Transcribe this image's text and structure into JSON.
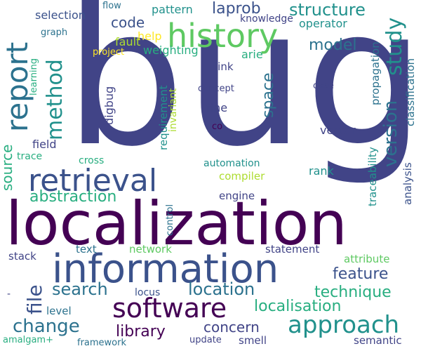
{
  "palette": {
    "deep_purple": "#440154",
    "indigo": "#3b528b",
    "slate_blue": "#414487",
    "teal_blue": "#2c728e",
    "teal": "#21918c",
    "sea_green": "#28ae80",
    "green": "#5ec962",
    "lime": "#addc30",
    "yellow": "#fde725"
  },
  "words": {
    "bug": "bug",
    "localization": "localization",
    "information": "information",
    "retrieval": "retrieval",
    "history": "history",
    "report": "report",
    "software": "software",
    "approach": "approach",
    "method": "method",
    "study": "study",
    "version": "version",
    "source": "source",
    "change": "change",
    "search": "search",
    "location": "location",
    "localisation": "localisation",
    "file": "file",
    "abstraction": "abstraction",
    "code": "code",
    "laprob": "laprob",
    "structure": "structure",
    "model": "model",
    "library": "library",
    "concern": "concern",
    "feature": "feature",
    "technique": "technique",
    "space": "space",
    "selection": "selection",
    "pattern": "pattern",
    "flow": "flow",
    "knowledge": "knowledge",
    "operator": "operator",
    "fault": "fault",
    "help": "help",
    "weighting": "weighting",
    "arie": "arie",
    "project": "project",
    "graph": "graph",
    "learning": "learning",
    "link": "link",
    "concept": "concept",
    "fine": "fine",
    "co": "co",
    "case": "case",
    "propagation": "propagation",
    "traceability": "traceability",
    "classification": "classification",
    "analysis": "analysis",
    "digbug": "digbug",
    "requirement": "requirement",
    "invariant": "invariant",
    "vector": "vector",
    "field": "field",
    "trace": "trace",
    "cross": "cross",
    "automation": "automation",
    "compiler": "compiler",
    "rank": "rank",
    "engine": "engine",
    "control": "control",
    "stack": "stack",
    "text": "text",
    "network": "network",
    "statement": "statement",
    "attribute": "attribute",
    "locus": "locus",
    "level": "level",
    "amalgam": "amalgam+",
    "framework": "framework",
    "update": "update",
    "smell": "smell",
    "semantic": "semantic",
    "dash": "-"
  }
}
